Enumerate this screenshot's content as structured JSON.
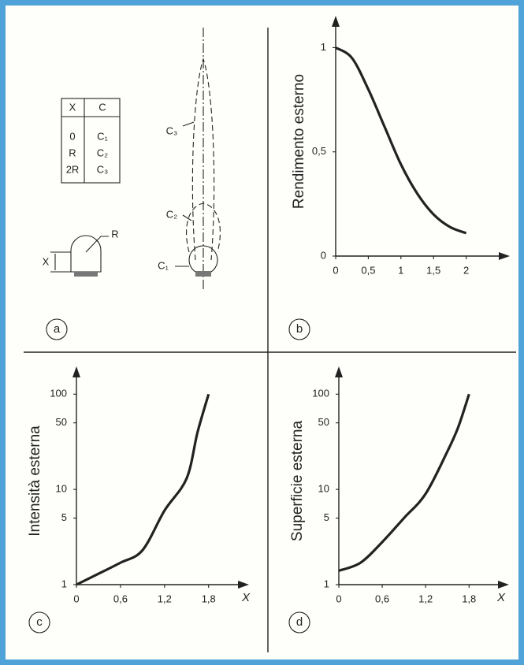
{
  "chart_data": [
    {
      "type": "line",
      "ylabel": "Rendimento esterno",
      "x": [
        0,
        0.25,
        0.5,
        0.75,
        1,
        1.25,
        1.5,
        1.75,
        2
      ],
      "values": [
        1.0,
        0.95,
        0.8,
        0.62,
        0.44,
        0.3,
        0.2,
        0.14,
        0.11
      ],
      "xlim": [
        0,
        2.5
      ],
      "ylim": [
        0,
        1.1
      ],
      "xticks": [
        0,
        {
          "value": 0.5,
          "label": "0,5"
        },
        1,
        {
          "value": 1.5,
          "label": "1,5"
        },
        2
      ],
      "yticks": [
        0,
        {
          "value": 0.5,
          "label": "0,5"
        },
        1
      ],
      "color": "#222222"
    },
    {
      "type": "line",
      "ylabel": "Intensità esterna",
      "xlabel": "X",
      "log_y": true,
      "x": [
        0,
        0.3,
        0.6,
        0.9,
        1.2,
        1.5,
        1.65,
        1.8
      ],
      "values": [
        1,
        1.3,
        1.7,
        2.3,
        6,
        13,
        40,
        100
      ],
      "xlim": [
        0,
        2.2
      ],
      "ylim": [
        1,
        150
      ],
      "xticks": [
        0,
        {
          "value": 0.6,
          "label": "0,6"
        },
        {
          "value": 1.2,
          "label": "1,2"
        },
        {
          "value": 1.8,
          "label": "1,8"
        }
      ],
      "yticks": [
        1,
        5,
        10,
        50,
        100
      ],
      "color": "#222222"
    },
    {
      "type": "line",
      "ylabel": "Superficie esterna",
      "xlabel": "X",
      "log_y": true,
      "x": [
        0,
        0.3,
        0.6,
        0.9,
        1.2,
        1.5,
        1.65,
        1.8
      ],
      "values": [
        1.4,
        1.7,
        2.8,
        5,
        9,
        25,
        45,
        100
      ],
      "xlim": [
        0,
        2.2
      ],
      "ylim": [
        1,
        150
      ],
      "xticks": [
        0,
        {
          "value": 0.6,
          "label": "0,6"
        },
        {
          "value": 1.2,
          "label": "1,2"
        },
        {
          "value": 1.8,
          "label": "1,8"
        }
      ],
      "yticks": [
        1,
        5,
        10,
        50,
        100
      ],
      "color": "#222222"
    }
  ],
  "diagram": {
    "table": {
      "header": [
        "X",
        "C"
      ],
      "rows": [
        [
          "0",
          "C₁"
        ],
        [
          "R",
          "C₂"
        ],
        [
          "2R",
          "C₃"
        ]
      ]
    },
    "dome_labels": [
      "R",
      "X"
    ],
    "curve_labels": [
      "C₃",
      "C₂",
      "C₁"
    ]
  },
  "panels": [
    "a",
    "b",
    "c",
    "d"
  ]
}
